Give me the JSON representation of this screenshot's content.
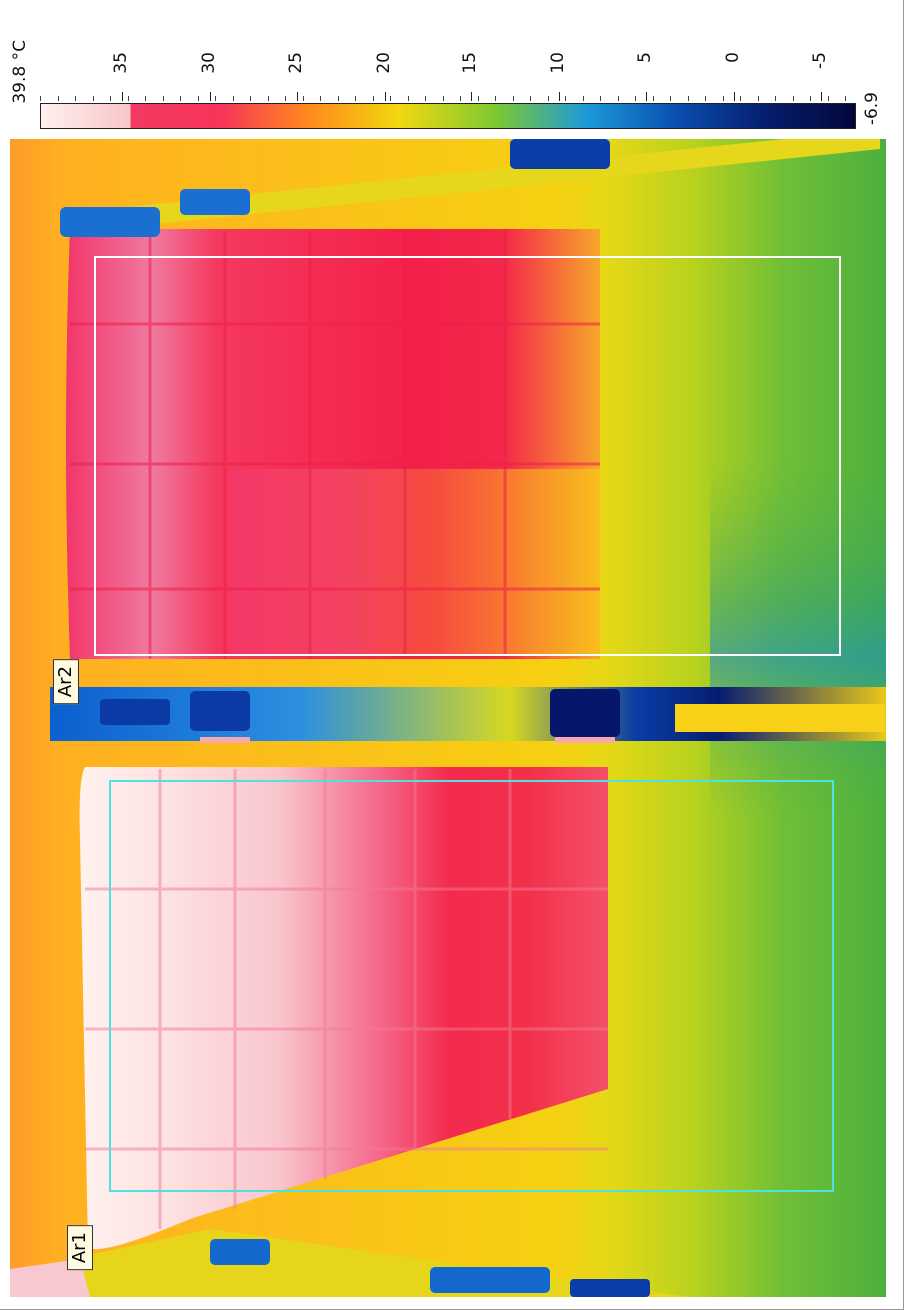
{
  "scale": {
    "max_label": "39.8 °C",
    "min_label": "-6.9",
    "ticks": [
      "35",
      "30",
      "25",
      "20",
      "15",
      "10",
      "5",
      "0",
      "-5"
    ],
    "gradient": [
      "#fff0ee",
      "#f7c6c8",
      "#f7345a",
      "#ff8a1c",
      "#f2d810",
      "#7cc832",
      "#1d9ad8",
      "#0a4fb0",
      "#061e6e",
      "#04063a"
    ]
  },
  "regions": [
    {
      "label": "Ar1",
      "outline_color": "#4ee3e3"
    },
    {
      "label": "Ar2",
      "outline_color": "#ffffff"
    }
  ]
}
